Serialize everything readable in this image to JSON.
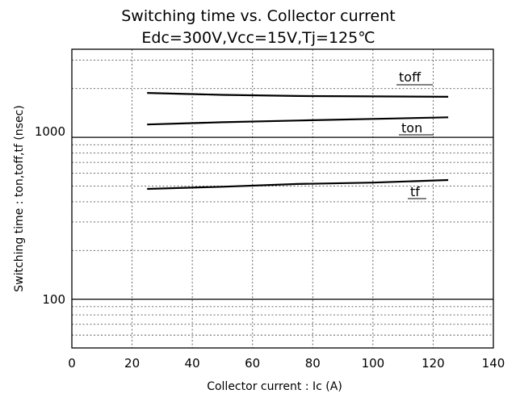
{
  "chart_data": {
    "type": "line",
    "title": "Switching time vs. Collector current",
    "subtitle": "Edc=300V,Vcc=15V,Tj=125℃",
    "xlabel": "Collector current : Ic (A)",
    "ylabel": "Switching time : ton,toff,tf (nsec)",
    "xlim": [
      0,
      140
    ],
    "ylim": [
      50,
      3500
    ],
    "yscale": "log",
    "grid": true,
    "x_ticks": [
      "0",
      "20",
      "40",
      "60",
      "80",
      "100",
      "120",
      "140"
    ],
    "y_ticks": [
      "100",
      "1000"
    ],
    "series": [
      {
        "name": "toff",
        "x": [
          25,
          50,
          75,
          100,
          125
        ],
        "y": [
          1880,
          1830,
          1800,
          1790,
          1780
        ]
      },
      {
        "name": "ton",
        "x": [
          25,
          50,
          75,
          100,
          125
        ],
        "y": [
          1200,
          1240,
          1270,
          1300,
          1330
        ]
      },
      {
        "name": "tf",
        "x": [
          25,
          50,
          75,
          100,
          125
        ],
        "y": [
          480,
          495,
          515,
          525,
          545
        ]
      }
    ]
  }
}
